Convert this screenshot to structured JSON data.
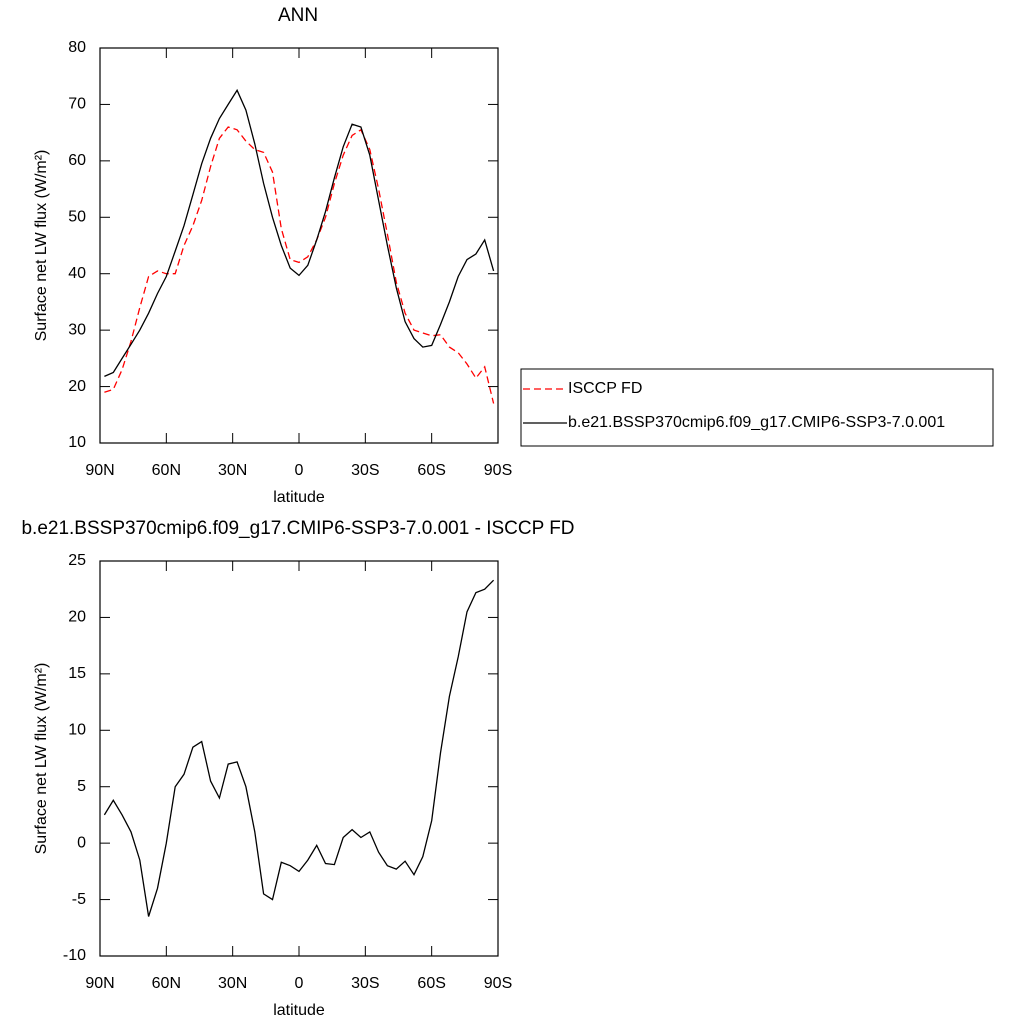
{
  "chart_data": [
    {
      "type": "line",
      "title": "ANN",
      "xlabel": "latitude",
      "ylabel": "Surface net LW flux (W/m²)",
      "x": [
        88,
        84,
        80,
        76,
        72,
        68,
        64,
        60,
        56,
        52,
        48,
        44,
        40,
        36,
        32,
        28,
        24,
        20,
        16,
        12,
        8,
        4,
        0,
        -4,
        -8,
        -12,
        -16,
        -20,
        -24,
        -28,
        -32,
        -36,
        -40,
        -44,
        -48,
        -52,
        -56,
        -60,
        -64,
        -68,
        -72,
        -76,
        -80,
        -84,
        -88
      ],
      "series": [
        {
          "name": "ISCCP FD",
          "color": "#ff0000",
          "dashed": true,
          "values": [
            19,
            19.5,
            23,
            28,
            34,
            39.5,
            40.5,
            40,
            40,
            45,
            48.5,
            53,
            59,
            64,
            66,
            65.5,
            63.5,
            62,
            61.5,
            58,
            48,
            42.5,
            42,
            43,
            46,
            50,
            56,
            61,
            64.5,
            65.5,
            62,
            55,
            47,
            38.5,
            33,
            30,
            29.5,
            29,
            29.2,
            27,
            26,
            24,
            21.5,
            23.5,
            17
          ]
        },
        {
          "name": "b.e21.BSSP370cmip6.f09_g17.CMIP6-SSP3-7.0.001",
          "color": "#000000",
          "dashed": false,
          "values": [
            21.8,
            22.5,
            25,
            27.5,
            30,
            33,
            36.5,
            39.5,
            44,
            48.5,
            54,
            59.5,
            64,
            67.5,
            70,
            72.5,
            69,
            63,
            56,
            50,
            45,
            41,
            39.7,
            41.5,
            46,
            51,
            57,
            62.5,
            66.5,
            66,
            61,
            53,
            45,
            37.5,
            31.5,
            28.5,
            27,
            27.3,
            31,
            35,
            39.5,
            42.5,
            43.5,
            46,
            40.5
          ]
        }
      ],
      "xlim": [
        90,
        -90
      ],
      "xticks": [
        {
          "value": 90,
          "label": "90N"
        },
        {
          "value": 60,
          "label": "60N"
        },
        {
          "value": 30,
          "label": "30N"
        },
        0,
        {
          "value": -30,
          "label": "30S"
        },
        {
          "value": -60,
          "label": "60S"
        },
        {
          "value": -90,
          "label": "90S"
        }
      ],
      "ylim": [
        10,
        80
      ],
      "yticks": [
        10,
        20,
        30,
        40,
        50,
        60,
        70,
        80
      ],
      "legend": "right"
    },
    {
      "type": "line",
      "title": "b.e21.BSSP370cmip6.f09_g17.CMIP6-SSP3-7.0.001 - ISCCP FD",
      "xlabel": "latitude",
      "ylabel": "Surface net LW flux (W/m²)",
      "x": [
        88,
        84,
        80,
        76,
        72,
        68,
        64,
        60,
        56,
        52,
        48,
        44,
        40,
        36,
        32,
        28,
        24,
        20,
        16,
        12,
        8,
        4,
        0,
        -4,
        -8,
        -12,
        -16,
        -20,
        -24,
        -28,
        -32,
        -36,
        -40,
        -44,
        -48,
        -52,
        -56,
        -60,
        -64,
        -68,
        -72,
        -76,
        -80,
        -84,
        -88
      ],
      "color": "#000000",
      "values": [
        2.5,
        3.8,
        2.5,
        1,
        -1.5,
        -6.5,
        -4,
        0,
        5,
        6.1,
        8.5,
        9,
        5.5,
        4,
        7,
        7.2,
        5,
        1,
        -4.5,
        -5,
        -1.7,
        -2,
        -2.5,
        -1.5,
        -0.2,
        -1.8,
        -1.9,
        0.5,
        1.2,
        0.5,
        1,
        -0.8,
        -2,
        -2.3,
        -1.6,
        -2.8,
        -1.2,
        2,
        8,
        13,
        16.5,
        20.5,
        22.2,
        22.5,
        23.3
      ],
      "xlim": [
        90,
        -90
      ],
      "xticks": [
        {
          "value": 90,
          "label": "90N"
        },
        {
          "value": 60,
          "label": "60N"
        },
        {
          "value": 30,
          "label": "30N"
        },
        0,
        {
          "value": -30,
          "label": "30S"
        },
        {
          "value": -60,
          "label": "60S"
        },
        {
          "value": -90,
          "label": "90S"
        }
      ],
      "ylim": [
        -10,
        25
      ],
      "yticks": [
        -10,
        -5,
        0,
        5,
        10,
        15,
        20,
        25
      ]
    }
  ]
}
